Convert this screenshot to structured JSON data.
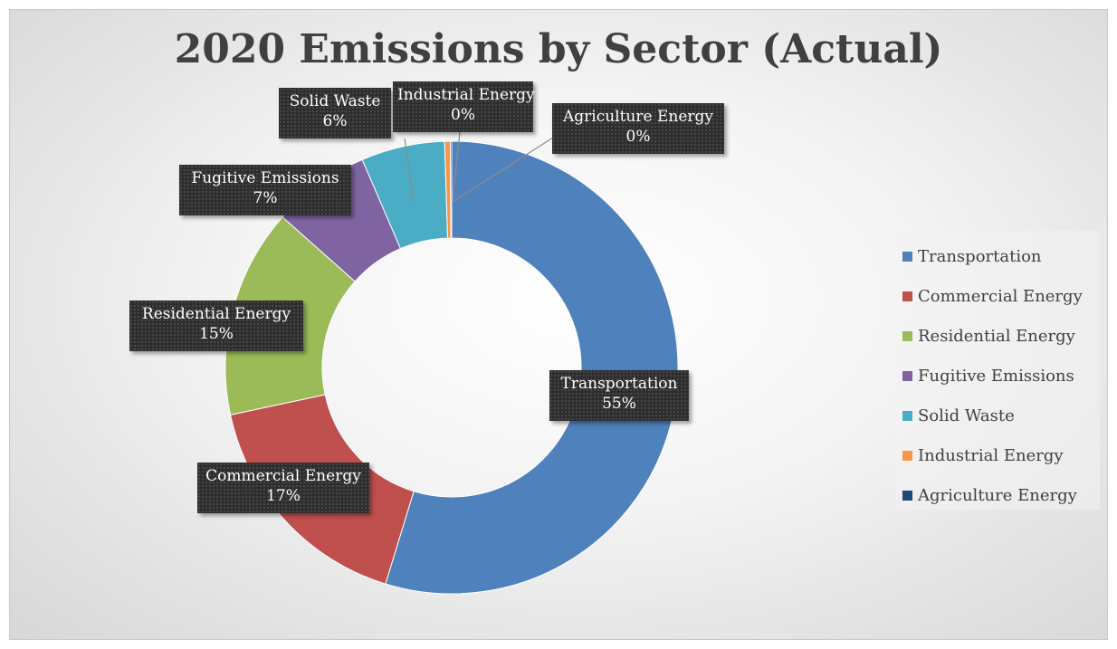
{
  "chart_data": {
    "type": "pie",
    "variant": "doughnut",
    "title": "2020 Emissions by Sector (Actual)",
    "legend_position": "right",
    "slices": [
      {
        "name": "Transportation",
        "value": 55,
        "label": "55%",
        "color": "#4F81BD"
      },
      {
        "name": "Commercial Energy",
        "value": 17,
        "label": "17%",
        "color": "#C0504D"
      },
      {
        "name": "Residential Energy",
        "value": 15,
        "label": "15%",
        "color": "#9BBB59"
      },
      {
        "name": "Fugitive Emissions",
        "value": 7,
        "label": "7%",
        "color": "#8064A2"
      },
      {
        "name": "Solid Waste",
        "value": 6,
        "label": "6%",
        "color": "#4BACC6"
      },
      {
        "name": "Industrial Energy",
        "value": 0.4,
        "label": "0%",
        "color": "#F79646"
      },
      {
        "name": "Agriculture Energy",
        "value": 0.1,
        "label": "0%",
        "color": "#1F497D"
      }
    ]
  }
}
